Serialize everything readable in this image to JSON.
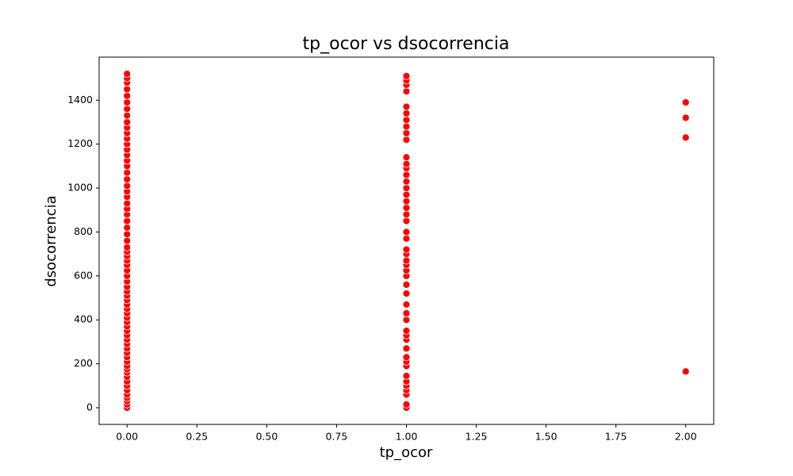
{
  "chart_data": {
    "type": "scatter",
    "title": "tp_ocor vs dsocorrencia",
    "x_label": "tp_ocor",
    "y_label": "dsocorrencia",
    "color": "#ff0000",
    "x": [
      0,
      0,
      0,
      0,
      0,
      0,
      0,
      0,
      0,
      0,
      0,
      0,
      0,
      0,
      0,
      0,
      0,
      0,
      0,
      0,
      0,
      0,
      0,
      0,
      0,
      0,
      0,
      0,
      0,
      0,
      0,
      0,
      0,
      0,
      0,
      0,
      0,
      0,
      0,
      0,
      0,
      0,
      0,
      0,
      0,
      0,
      0,
      0,
      0,
      0,
      0,
      0,
      0,
      0,
      0,
      0,
      0,
      0,
      0,
      0,
      0,
      0,
      0,
      0,
      0,
      0,
      0,
      1,
      1,
      1,
      1,
      1,
      1,
      1,
      1,
      1,
      1,
      1,
      1,
      1,
      1,
      1,
      1,
      1,
      1,
      1,
      1,
      1,
      1,
      1,
      1,
      1,
      1,
      1,
      1,
      1,
      1,
      1,
      1,
      1,
      1,
      1,
      1,
      1,
      1,
      1,
      1,
      1,
      1,
      1,
      1,
      1,
      1,
      1,
      1,
      2,
      2,
      2,
      2
    ],
    "y": [
      0,
      15,
      30,
      45,
      60,
      80,
      100,
      120,
      140,
      160,
      175,
      190,
      210,
      230,
      250,
      270,
      290,
      310,
      330,
      350,
      370,
      390,
      410,
      430,
      450,
      470,
      490,
      510,
      530,
      550,
      575,
      600,
      625,
      650,
      670,
      690,
      710,
      730,
      760,
      790,
      820,
      850,
      880,
      905,
      930,
      960,
      985,
      1010,
      1040,
      1070,
      1100,
      1125,
      1150,
      1175,
      1200,
      1225,
      1250,
      1275,
      1300,
      1330,
      1360,
      1390,
      1420,
      1450,
      1480,
      1500,
      1520,
      0,
      15,
      60,
      80,
      100,
      120,
      145,
      190,
      210,
      230,
      270,
      310,
      330,
      350,
      400,
      430,
      470,
      520,
      560,
      600,
      625,
      650,
      670,
      700,
      720,
      770,
      800,
      850,
      880,
      910,
      940,
      970,
      1000,
      1030,
      1060,
      1090,
      1110,
      1140,
      1220,
      1250,
      1280,
      1310,
      1340,
      1370,
      1440,
      1470,
      1490,
      1510,
      1390,
      1320,
      1230,
      165
    ],
    "xlim": [
      -0.1,
      2.1
    ],
    "xticks": [
      {
        "value": 0,
        "label": "0.00"
      },
      {
        "value": 0.25,
        "label": "0.25"
      },
      {
        "value": 0.5,
        "label": "0.50"
      },
      {
        "value": 0.75,
        "label": "0.75"
      },
      {
        "value": 1,
        "label": "1.00"
      },
      {
        "value": 1.25,
        "label": "1.25"
      },
      {
        "value": 1.5,
        "label": "1.50"
      },
      {
        "value": 1.75,
        "label": "1.75"
      },
      {
        "value": 2,
        "label": "2.00"
      }
    ],
    "ylim": [
      -76,
      1596
    ],
    "yticks": [
      0,
      200,
      400,
      600,
      800,
      1000,
      1200,
      1400
    ]
  }
}
